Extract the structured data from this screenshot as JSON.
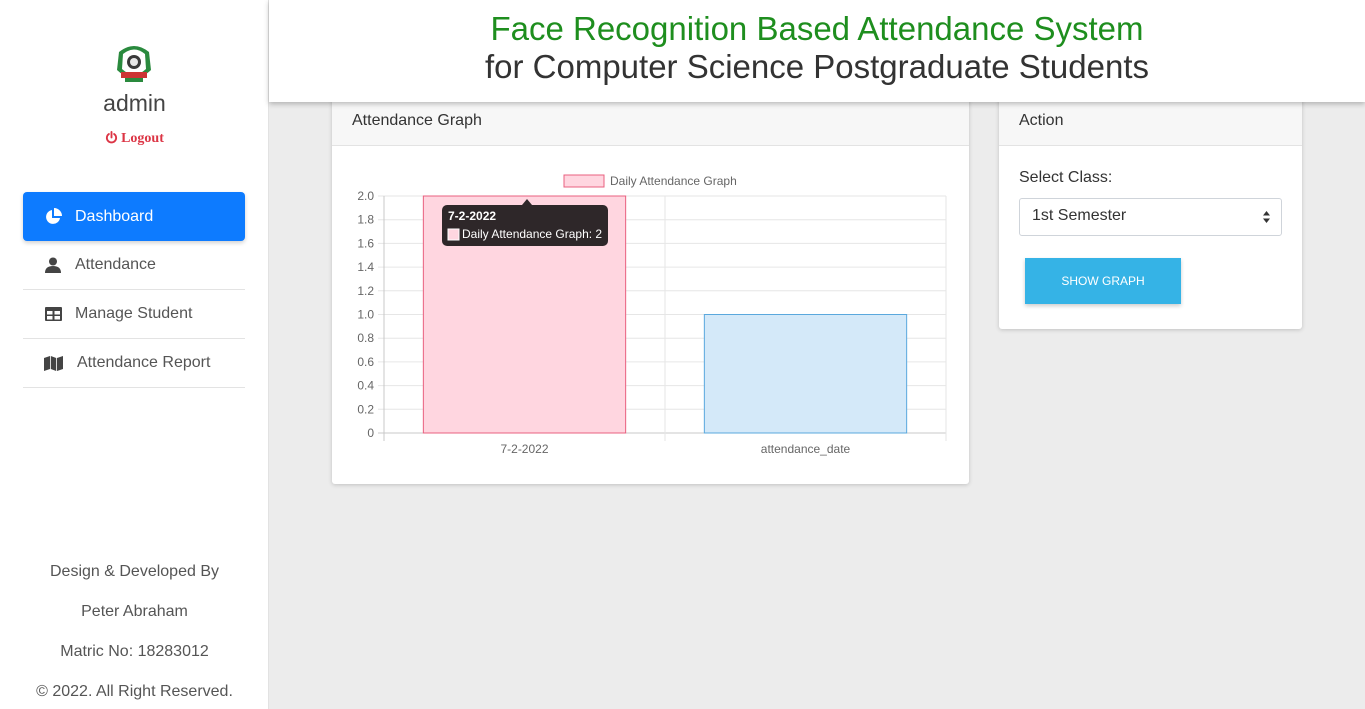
{
  "sidebar": {
    "username": "admin",
    "logout_label": "Logout",
    "nav": [
      {
        "label": "Dashboard",
        "icon": "pie-chart-icon",
        "active": true
      },
      {
        "label": "Attendance",
        "icon": "user-icon"
      },
      {
        "label": "Manage Student",
        "icon": "table-icon"
      },
      {
        "label": "Attendance Report",
        "icon": "map-icon"
      }
    ],
    "credits": {
      "line1": "Design & Developed By",
      "line2": "Peter Abraham",
      "line3": "Matric No: 18283012",
      "line4": "© 2022. All Right Reserved."
    }
  },
  "header": {
    "title": "Face Recognition Based Attendance System",
    "subtitle": "for Computer Science Postgraduate Students"
  },
  "graph_card": {
    "title": "Attendance Graph"
  },
  "action_card": {
    "title": "Action",
    "select_label": "Select Class:",
    "select_value": "1st Semester",
    "button_label": "SHOW GRAPH"
  },
  "chart_data": {
    "type": "bar",
    "categories": [
      "7-2-2022",
      "attendance_date"
    ],
    "series": [
      {
        "name": "Daily Attendance Graph",
        "values": [
          2,
          1
        ]
      }
    ],
    "bar_colors": [
      "#ffd6e0",
      "#d4e9f9"
    ],
    "bar_borders": [
      "#e8607f",
      "#5aa8dd"
    ],
    "ylim": [
      0,
      2.0
    ],
    "yticks": [
      "0",
      "0.2",
      "0.4",
      "0.6",
      "0.8",
      "1.0",
      "1.2",
      "1.4",
      "1.6",
      "1.8",
      "2.0"
    ],
    "grid": true,
    "legend": "top-center",
    "tooltip": {
      "title": "7-2-2022",
      "text": "Daily Attendance Graph: 2"
    }
  },
  "colors": {
    "primary": "#0d7bff",
    "title_green": "#1e8e1e",
    "logout_red": "#dc3545",
    "button_blue": "#35b3e6"
  }
}
